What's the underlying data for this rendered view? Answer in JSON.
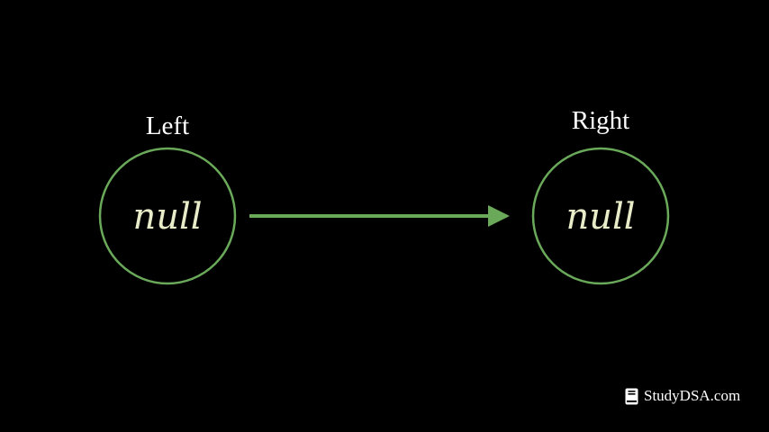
{
  "diagram": {
    "nodes": [
      {
        "label": "Left",
        "value": "null"
      },
      {
        "label": "Right",
        "value": "null"
      }
    ],
    "edges": [
      {
        "from": "Left",
        "to": "Right",
        "directed": true
      }
    ]
  },
  "brand": {
    "text": "StudyDSA.com",
    "icon": "book-icon"
  },
  "colors": {
    "background": "#000000",
    "accent": "#6aa95a",
    "label": "#ffffff",
    "node_text": "#e9ecc8"
  }
}
